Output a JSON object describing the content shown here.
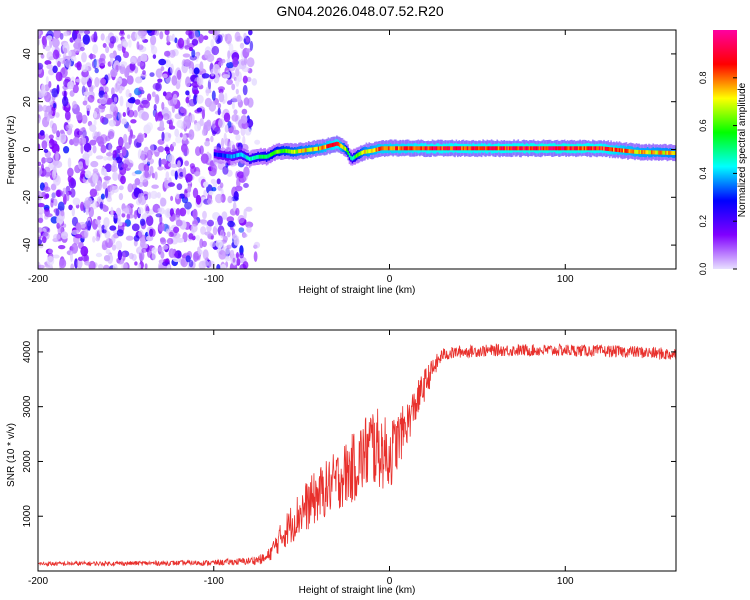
{
  "title": "GN04.2026.048.07.52.R20",
  "chart_data": [
    {
      "type": "heatmap",
      "title": "GN04.2026.048.07.52.R20",
      "xlabel": "Height of straight line (km)",
      "ylabel": "Frequency (Hz)",
      "xlim": [
        -200,
        163
      ],
      "ylim": [
        -50,
        50
      ],
      "x_ticks": [
        -200,
        -100,
        0,
        100
      ],
      "y_ticks": [
        40,
        20,
        0,
        -20,
        -40
      ],
      "colorbar": {
        "label": "Normalized spectral amplitude",
        "range": [
          0,
          1
        ],
        "ticks": [
          "0.0",
          "0.2",
          "0.4",
          "0.6",
          "0.8"
        ],
        "tick_values": [
          0,
          0.2,
          0.4,
          0.6,
          0.8
        ],
        "colormap": [
          "#e8e0ff",
          "#8000ff",
          "#0000ff",
          "#00ffff",
          "#00ff00",
          "#ffff00",
          "#ff0000",
          "#ff00a0"
        ]
      },
      "noise_region_x": [
        -200,
        -75
      ],
      "noise_frequency_range": [
        -50,
        50
      ],
      "ridge": {
        "x": [
          -100,
          -95,
          -90,
          -85,
          -80,
          -75,
          -70,
          -65,
          -60,
          -55,
          -50,
          -45,
          -40,
          -35,
          -30,
          -25,
          -22,
          -20,
          -18,
          -15,
          -10,
          -5,
          0,
          10,
          20,
          40,
          60,
          80,
          100,
          120,
          140,
          163
        ],
        "frequency": [
          -2,
          -2.5,
          -3,
          -2,
          -4,
          -3,
          -3,
          -1,
          -0.5,
          -1,
          -0.5,
          0,
          0.5,
          1.5,
          2.5,
          0,
          -4,
          -3,
          -2,
          -1,
          -0.5,
          0.5,
          0.5,
          0.5,
          0.5,
          0.5,
          0.5,
          0.5,
          0.5,
          0.5,
          -1,
          -1.5
        ],
        "amplitude": [
          0.3,
          0.35,
          0.4,
          0.45,
          0.5,
          0.55,
          0.6,
          0.65,
          0.7,
          0.75,
          0.8,
          0.8,
          0.85,
          0.9,
          0.95,
          0.7,
          0.5,
          0.6,
          0.7,
          0.8,
          0.85,
          0.9,
          0.9,
          0.92,
          0.95,
          0.95,
          0.95,
          0.97,
          0.97,
          0.95,
          0.85,
          0.8
        ]
      }
    },
    {
      "type": "line",
      "xlabel": "Height of straight line (km)",
      "ylabel": "SNR (10 * v/v)",
      "xlim": [
        -200,
        163
      ],
      "ylim": [
        0,
        4400
      ],
      "x_ticks": [
        -200,
        -100,
        0,
        100
      ],
      "y_ticks": [
        1000,
        2000,
        3000,
        4000
      ],
      "series": [
        {
          "name": "SNR",
          "color": "#e8302c",
          "x": [
            -200,
            -150,
            -100,
            -80,
            -70,
            -60,
            -50,
            -40,
            -30,
            -20,
            -15,
            -10,
            -5,
            0,
            10,
            20,
            25,
            30,
            40,
            60,
            100,
            140,
            163
          ],
          "y": [
            130,
            140,
            150,
            180,
            230,
            700,
            1100,
            1400,
            1650,
            1900,
            2100,
            2300,
            2200,
            2100,
            2700,
            3400,
            3700,
            3950,
            4000,
            4030,
            4030,
            4000,
            3950
          ],
          "noise_amplitude": [
            40,
            40,
            50,
            70,
            100,
            300,
            450,
            500,
            550,
            650,
            700,
            800,
            700,
            650,
            400,
            300,
            200,
            120,
            110,
            110,
            110,
            110,
            120
          ]
        }
      ]
    }
  ]
}
